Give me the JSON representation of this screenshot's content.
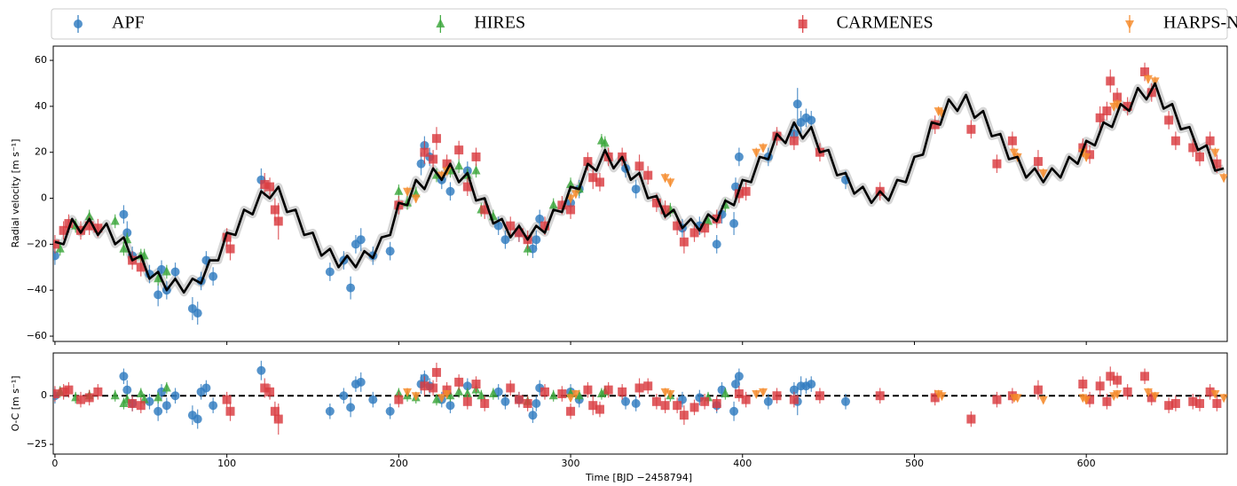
{
  "chart_data": {
    "type": "scatter",
    "xlabel": "Time [BJD −2458794]",
    "ylabel": "Radial velocity [m s⁻¹]",
    "residual_ylabel": "O-C [m s⁻¹]",
    "xlim": [
      -1,
      682
    ],
    "xticks": [
      0,
      100,
      200,
      300,
      400,
      500,
      600
    ],
    "ylim": [
      -62.3,
      66.2
    ],
    "yticks": [
      {
        "value": -60,
        "label": "−60"
      },
      {
        "value": -40,
        "label": "−40"
      },
      {
        "value": -20,
        "label": "−20"
      },
      0,
      20,
      40,
      60
    ],
    "residual_ylim": [
      -30,
      22
    ],
    "residual_yticks": [
      {
        "value": -25,
        "label": "−25"
      },
      0
    ],
    "series": [
      {
        "name": "APF",
        "color": "#2f7bbf",
        "marker": "circle",
        "x": [
          0,
          40,
          42,
          45,
          55,
          60,
          62,
          65,
          70,
          80,
          83,
          85,
          88,
          92,
          120,
          160,
          168,
          172,
          175,
          178,
          185,
          195,
          213,
          215,
          218,
          225,
          230,
          240,
          258,
          262,
          270,
          278,
          280,
          282,
          300,
          305,
          332,
          338,
          365,
          375,
          385,
          388,
          395,
          396,
          398,
          415,
          430,
          432,
          434,
          437,
          440,
          460
        ],
        "values": [
          -25,
          -7,
          -15,
          -25,
          -33,
          -42,
          -31,
          -40,
          -32,
          -48,
          -50,
          -36,
          -27,
          -34,
          8,
          -32,
          -27,
          -39,
          -20,
          -18,
          -25,
          -23,
          15,
          23,
          18,
          8,
          3,
          12,
          -12,
          -18,
          -15,
          -22,
          -18,
          -9,
          -2,
          4,
          13,
          4,
          -13,
          -12,
          -20,
          -7,
          -11,
          5,
          18,
          18,
          28,
          41,
          33,
          35,
          34,
          8
        ],
        "errors": [
          4,
          4,
          5,
          4,
          4,
          5,
          4,
          4,
          4,
          5,
          5,
          4,
          4,
          4,
          5,
          4,
          4,
          5,
          4,
          5,
          4,
          4,
          5,
          4,
          4,
          4,
          4,
          4,
          4,
          4,
          4,
          4,
          4,
          4,
          4,
          4,
          4,
          4,
          4,
          4,
          4,
          4,
          5,
          4,
          4,
          4,
          4,
          7,
          5,
          4,
          4,
          4
        ],
        "residuals": [
          0,
          10,
          3,
          -4,
          -3,
          -8,
          2,
          -5,
          0,
          -10,
          -12,
          2,
          4,
          -5,
          13,
          -8,
          0,
          -6,
          6,
          7,
          -2,
          -8,
          6,
          9,
          5,
          -2,
          -5,
          5,
          2,
          -3,
          -2,
          -10,
          -4,
          4,
          2,
          -2,
          -3,
          -4,
          -2,
          -1,
          -5,
          3,
          -8,
          6,
          10,
          -3,
          3,
          -3,
          5,
          5,
          6,
          -3
        ]
      },
      {
        "name": "HIRES",
        "color": "#3aa63a",
        "marker": "triangle-up",
        "x": [
          3,
          12,
          20,
          35,
          40,
          42,
          50,
          52,
          60,
          65,
          200,
          205,
          210,
          222,
          230,
          235,
          240,
          245,
          248,
          255,
          275,
          290,
          300,
          305,
          318,
          320,
          358,
          380,
          390
        ],
        "values": [
          -22,
          -12,
          -8,
          -10,
          -22,
          -18,
          -25,
          -25,
          -35,
          -32,
          3,
          -2,
          2,
          10,
          12,
          14,
          10,
          12,
          -5,
          -8,
          -22,
          -3,
          6,
          4,
          25,
          24,
          -5,
          -10,
          -3
        ],
        "errors": [
          3,
          3,
          3,
          3,
          3,
          3,
          3,
          3,
          3,
          3,
          3,
          3,
          3,
          3,
          3,
          3,
          3,
          3,
          3,
          3,
          3,
          3,
          3,
          3,
          3,
          3,
          3,
          3,
          3
        ],
        "residuals": [
          2,
          -1,
          0,
          0,
          -4,
          -2,
          1,
          -2,
          -1,
          4,
          1,
          0,
          -1,
          -2,
          0,
          2,
          1,
          3,
          0,
          1,
          -3,
          0,
          1,
          0,
          1,
          2,
          0,
          -1,
          1
        ]
      },
      {
        "name": "CARMENES",
        "color": "#d93a3f",
        "marker": "square",
        "x": [
          0,
          5,
          8,
          15,
          20,
          25,
          45,
          50,
          100,
          102,
          122,
          125,
          128,
          130,
          200,
          215,
          220,
          222,
          228,
          235,
          240,
          245,
          250,
          265,
          270,
          275,
          285,
          295,
          300,
          310,
          313,
          317,
          322,
          330,
          340,
          345,
          350,
          355,
          362,
          366,
          372,
          378,
          385,
          398,
          402,
          420,
          430,
          445,
          480,
          512,
          533,
          548,
          557,
          572,
          598,
          602,
          608,
          612,
          614,
          618,
          624,
          634,
          638,
          648,
          652,
          662,
          666,
          672,
          676
        ],
        "values": [
          -20,
          -14,
          -11,
          -14,
          -12,
          -13,
          -27,
          -30,
          -17,
          -22,
          6,
          5,
          -5,
          -10,
          -3,
          20,
          17,
          26,
          15,
          21,
          5,
          18,
          -5,
          -12,
          -15,
          -18,
          -12,
          -3,
          -5,
          16,
          9,
          7,
          18,
          18,
          14,
          10,
          -2,
          -5,
          -12,
          -19,
          -15,
          -13,
          -9,
          2,
          3,
          27,
          25,
          20,
          3,
          32,
          30,
          15,
          25,
          16,
          22,
          19,
          35,
          38,
          51,
          44,
          40,
          55,
          46,
          34,
          25,
          22,
          18,
          25,
          15
        ],
        "errors": [
          4,
          4,
          4,
          4,
          4,
          4,
          4,
          4,
          4,
          5,
          5,
          4,
          5,
          8,
          4,
          5,
          4,
          5,
          4,
          4,
          4,
          4,
          4,
          4,
          4,
          4,
          4,
          4,
          4,
          4,
          5,
          4,
          4,
          4,
          5,
          4,
          4,
          4,
          4,
          5,
          4,
          4,
          4,
          4,
          4,
          4,
          4,
          4,
          4,
          4,
          4,
          4,
          4,
          5,
          4,
          4,
          5,
          4,
          5,
          4,
          4,
          4,
          4,
          4,
          4,
          4,
          4,
          4,
          4
        ],
        "residuals": [
          1,
          2,
          3,
          -2,
          -1,
          2,
          -4,
          -5,
          -2,
          -8,
          4,
          2,
          -8,
          -12,
          -2,
          5,
          4,
          12,
          3,
          7,
          -3,
          6,
          -4,
          4,
          -2,
          -4,
          2,
          1,
          -8,
          3,
          -5,
          -7,
          3,
          2,
          4,
          5,
          -3,
          -5,
          -5,
          -10,
          -6,
          -3,
          -4,
          1,
          -2,
          0,
          -2,
          0,
          0,
          -1,
          -12,
          -2,
          0,
          3,
          6,
          -2,
          5,
          -3,
          10,
          8,
          2,
          10,
          -1,
          -5,
          -4,
          -3,
          -4,
          2,
          -4
        ]
      },
      {
        "name": "HARPS-N",
        "color": "#f58a2a",
        "marker": "triangle-down",
        "x": [
          205,
          210,
          225,
          228,
          300,
          303,
          355,
          358,
          408,
          412,
          514,
          516,
          558,
          560,
          575,
          598,
          600,
          616,
          618,
          636,
          640,
          675,
          680
        ],
        "values": [
          3,
          0,
          10,
          12,
          0,
          2,
          9,
          7,
          20,
          22,
          38,
          37,
          20,
          18,
          11,
          20,
          18,
          40,
          41,
          52,
          51,
          20,
          9
        ],
        "errors": [
          2,
          2,
          2,
          2,
          2,
          2,
          2,
          2,
          2,
          2,
          2,
          2,
          2,
          2,
          2,
          2,
          2,
          2,
          2,
          2,
          2,
          2,
          2
        ],
        "residuals": [
          2,
          0,
          -1,
          1,
          -1,
          1,
          2,
          1,
          1,
          2,
          1,
          0,
          -1,
          -1,
          -2,
          -1,
          -2,
          0,
          1,
          2,
          0,
          1,
          -1
        ]
      }
    ],
    "model": {
      "color": "#000000",
      "x": [
        0,
        5,
        10,
        15,
        20,
        25,
        30,
        35,
        40,
        45,
        50,
        55,
        60,
        65,
        70,
        75,
        80,
        85,
        90,
        95,
        100,
        105,
        110,
        115,
        120,
        125,
        130,
        135,
        140,
        145,
        150,
        155,
        160,
        165,
        170,
        175,
        180,
        185,
        190,
        195,
        200,
        205,
        210,
        215,
        220,
        225,
        230,
        235,
        240,
        245,
        250,
        255,
        260,
        265,
        270,
        275,
        280,
        285,
        290,
        295,
        300,
        305,
        310,
        315,
        320,
        325,
        330,
        335,
        340,
        345,
        350,
        355,
        360,
        365,
        370,
        375,
        380,
        385,
        390,
        395,
        400,
        405,
        410,
        415,
        420,
        425,
        430,
        435,
        440,
        445,
        450,
        455,
        460,
        465,
        470,
        475,
        480,
        485,
        490,
        495,
        500,
        505,
        510,
        515,
        520,
        525,
        530,
        535,
        540,
        545,
        550,
        555,
        560,
        565,
        570,
        575,
        580,
        585,
        590,
        595,
        600,
        605,
        610,
        615,
        620,
        625,
        630,
        635,
        640,
        645,
        650,
        655,
        660,
        665,
        670,
        675,
        680
      ],
      "values": [
        -19,
        -20,
        -9,
        -15,
        -9,
        -16,
        -11,
        -20,
        -17,
        -27,
        -25,
        -35,
        -32,
        -40,
        -35,
        -41,
        -35,
        -37,
        -27,
        -27,
        -15,
        -16,
        -5,
        -7,
        3,
        0,
        5,
        -6,
        -5,
        -16,
        -15,
        -25,
        -22,
        -30,
        -25,
        -30,
        -23,
        -26,
        -17,
        -16,
        -2,
        -3,
        8,
        4,
        13,
        8,
        15,
        7,
        11,
        -1,
        0,
        -11,
        -9,
        -17,
        -12,
        -18,
        -12,
        -15,
        -5,
        -6,
        5,
        4,
        15,
        12,
        21,
        13,
        18,
        8,
        11,
        0,
        1,
        -8,
        -5,
        -13,
        -9,
        -14,
        -7,
        -10,
        -1,
        -3,
        8,
        7,
        18,
        17,
        28,
        24,
        33,
        26,
        31,
        20,
        21,
        10,
        11,
        2,
        5,
        -2,
        3,
        -1,
        8,
        7,
        18,
        19,
        33,
        32,
        43,
        38,
        45,
        35,
        38,
        27,
        28,
        17,
        18,
        9,
        13,
        7,
        13,
        9,
        18,
        15,
        25,
        23,
        33,
        31,
        41,
        38,
        48,
        43,
        50,
        39,
        41,
        30,
        31,
        21,
        23,
        12,
        13
      ]
    }
  }
}
